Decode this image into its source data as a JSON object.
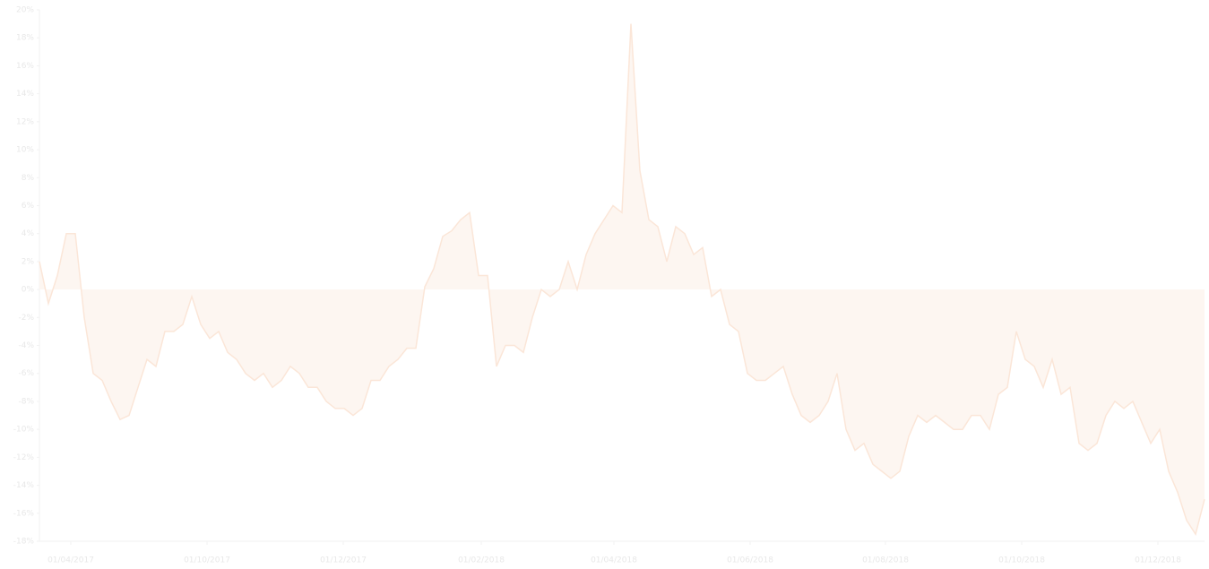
{
  "chart_data": {
    "type": "line",
    "series": [
      {
        "color": "#fbe6d8",
        "fill": "#fdf6f1",
        "values": [
          2,
          -1,
          1,
          4,
          4,
          -2,
          -6,
          -6.5,
          -8,
          -9.3,
          -9,
          -7,
          -5,
          -5.5,
          -3,
          -3,
          -2.5,
          -0.5,
          -2.5,
          -3.5,
          -3,
          -4.5,
          -5,
          -6,
          -6.5,
          -6,
          -7,
          -6.5,
          -5.5,
          -6,
          -7,
          -7,
          -8,
          -8.5,
          -8.5,
          -9,
          -8.5,
          -6.5,
          -6.5,
          -5.5,
          -5,
          -4.2,
          -4.2,
          0.2,
          1.5,
          3.8,
          4.2,
          5,
          5.5,
          1,
          1,
          -5.5,
          -4,
          -4,
          -4.5,
          -2,
          0,
          -0.5,
          0,
          2,
          0,
          2.5,
          4,
          5,
          6,
          5.5,
          19,
          8.5,
          5,
          4.5,
          2,
          4.5,
          4,
          2.5,
          3,
          -0.5,
          0,
          -2.5,
          -3,
          -6,
          -6.5,
          -6.5,
          -6,
          -5.5,
          -7.5,
          -9,
          -9.5,
          -9,
          -8,
          -6,
          -10,
          -11.5,
          -11,
          -12.5,
          -13,
          -13.5,
          -13,
          -10.5,
          -9,
          -9.5,
          -9,
          -9.5,
          -10,
          -10,
          -9,
          -9,
          -10,
          -7.5,
          -7,
          -3,
          -5,
          -5.5,
          -7,
          -5,
          -7.5,
          -7,
          -11,
          -11.5,
          -11,
          -9,
          -8,
          -8.5,
          -8,
          -9.5,
          -11,
          -10,
          -13,
          -14.5,
          -16.5,
          -17.5,
          -15
        ]
      }
    ],
    "xlim": [
      0,
      130
    ],
    "xticks": [
      {
        "value": 3.5,
        "label": "01/04/2017"
      },
      {
        "value": 18.7,
        "label": "01/10/2017"
      },
      {
        "value": 33.9,
        "label": "01/12/2017"
      },
      {
        "value": 49.3,
        "label": "01/02/2018"
      },
      {
        "value": 64.1,
        "label": "01/04/2018"
      },
      {
        "value": 79.3,
        "label": "01/06/2018"
      },
      {
        "value": 94.4,
        "label": "01/08/2018"
      },
      {
        "value": 109.6,
        "label": "01/10/2018"
      },
      {
        "value": 124.8,
        "label": "01/12/2018"
      }
    ],
    "ylim": [
      -18,
      20
    ],
    "yticks": [
      {
        "value": -18,
        "label": "-18%"
      },
      {
        "value": -16,
        "label": "-16%"
      },
      {
        "value": -14,
        "label": "-14%"
      },
      {
        "value": -12,
        "label": "-12%"
      },
      {
        "value": -10,
        "label": "-10%"
      },
      {
        "value": -8,
        "label": "-8%"
      },
      {
        "value": -6,
        "label": "-6%"
      },
      {
        "value": -4,
        "label": "-4%"
      },
      {
        "value": -2,
        "label": "-2%"
      },
      {
        "value": 0,
        "label": "0%"
      },
      {
        "value": 2,
        "label": "2%"
      },
      {
        "value": 4,
        "label": "4%"
      },
      {
        "value": 6,
        "label": "6%"
      },
      {
        "value": 8,
        "label": "8%"
      },
      {
        "value": 10,
        "label": "10%"
      },
      {
        "value": 12,
        "label": "12%"
      },
      {
        "value": 14,
        "label": "14%"
      },
      {
        "value": 16,
        "label": "16%"
      },
      {
        "value": 18,
        "label": "18%"
      },
      {
        "value": 20,
        "label": "20%"
      }
    ],
    "grid": true
  }
}
